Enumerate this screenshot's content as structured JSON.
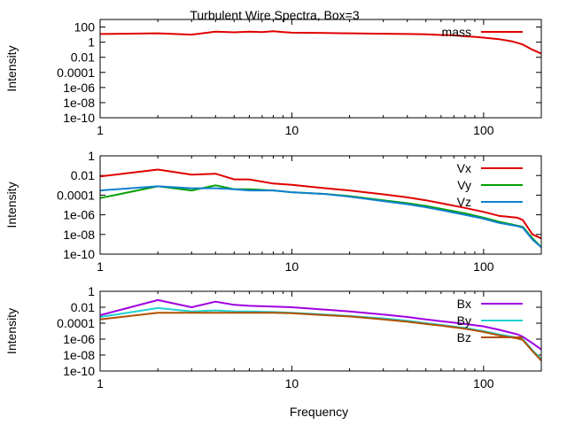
{
  "title": "Turbulent Wire Spectra, Box=3",
  "xlabel": "Frequency",
  "colors": {
    "mass": "#e00000",
    "Vx": "#e00000",
    "Vy": "#00a000",
    "Vz": "#1080d0",
    "Bx": "#a000e0",
    "By": "#20d0d0",
    "Bz": "#b05000"
  },
  "chart_data": [
    {
      "type": "line",
      "title": "Turbulent Wire Spectra, Box=3",
      "xlabel": "",
      "ylabel": "Intensity",
      "xscale": "log",
      "yscale": "log",
      "xlim": [
        1,
        200
      ],
      "ylim": [
        1e-10,
        1000
      ],
      "xticks": [
        "1",
        "10",
        "100"
      ],
      "yticks": [
        "100",
        "1",
        "0.01",
        "0.0001",
        "1e-06",
        "1e-08",
        "1e-10"
      ],
      "legend_position": "top-right",
      "series": [
        {
          "name": "mass",
          "x": [
            1,
            2,
            3,
            4,
            5,
            6,
            7,
            8,
            9,
            10,
            15,
            20,
            30,
            40,
            50,
            60,
            70,
            80,
            90,
            100,
            120,
            140,
            160,
            180,
            200
          ],
          "y": [
            12,
            15,
            10,
            25,
            20,
            25,
            22,
            28,
            22,
            18,
            16,
            15,
            13,
            12,
            11,
            9,
            8,
            6,
            5,
            4,
            2.5,
            1.3,
            0.5,
            0.1,
            0.03
          ]
        }
      ]
    },
    {
      "type": "line",
      "xlabel": "",
      "ylabel": "Intensity",
      "xscale": "log",
      "yscale": "log",
      "xlim": [
        1,
        200
      ],
      "ylim": [
        1e-10,
        1
      ],
      "xticks": [
        "1",
        "10",
        "100"
      ],
      "yticks": [
        "1",
        "0.01",
        "0.0001",
        "1e-06",
        "1e-08",
        "1e-10"
      ],
      "legend_position": "top-right",
      "series": [
        {
          "name": "Vx",
          "x": [
            1,
            2,
            3,
            4,
            5,
            6,
            8,
            10,
            15,
            20,
            30,
            40,
            50,
            60,
            80,
            100,
            120,
            150,
            160,
            180,
            200
          ],
          "y": [
            0.008,
            0.04,
            0.012,
            0.015,
            0.004,
            0.004,
            0.0015,
            0.0011,
            0.0005,
            0.0003,
            0.00012,
            6e-05,
            3e-05,
            1.5e-05,
            5e-06,
            2e-06,
            8e-07,
            5e-07,
            3e-07,
            1e-08,
            4e-09
          ]
        },
        {
          "name": "Vy",
          "x": [
            1,
            2,
            3,
            4,
            5,
            6,
            8,
            10,
            15,
            20,
            30,
            40,
            50,
            60,
            80,
            100,
            120,
            150,
            160,
            180,
            200
          ],
          "y": [
            5e-05,
            0.0008,
            0.0003,
            0.001,
            0.0004,
            0.0004,
            0.0003,
            0.0002,
            0.00013,
            8e-05,
            3e-05,
            1.5e-05,
            8e-06,
            4e-06,
            1.4e-06,
            5e-07,
            2e-07,
            8e-08,
            6e-08,
            4e-09,
            5e-10
          ]
        },
        {
          "name": "Vz",
          "x": [
            1,
            2,
            3,
            4,
            5,
            6,
            8,
            10,
            15,
            20,
            30,
            40,
            50,
            60,
            80,
            100,
            120,
            150,
            160,
            180,
            200
          ],
          "y": [
            0.0003,
            0.0008,
            0.0005,
            0.0005,
            0.0004,
            0.0003,
            0.0003,
            0.0002,
            0.00013,
            7e-05,
            2.5e-05,
            1.2e-05,
            6e-06,
            3e-06,
            1e-06,
            4e-07,
            1.5e-07,
            7e-08,
            5e-08,
            3e-09,
            5e-10
          ]
        }
      ]
    },
    {
      "type": "line",
      "xlabel": "Frequency",
      "ylabel": "Intensity",
      "xscale": "log",
      "yscale": "log",
      "xlim": [
        1,
        200
      ],
      "ylim": [
        1e-10,
        1
      ],
      "xticks": [
        "1",
        "10",
        "100"
      ],
      "yticks": [
        "1",
        "0.01",
        "0.0001",
        "1e-06",
        "1e-08",
        "1e-10"
      ],
      "legend_position": "top-right",
      "series": [
        {
          "name": "Bx",
          "x": [
            1,
            2,
            3,
            4,
            5,
            6,
            8,
            10,
            15,
            20,
            30,
            40,
            50,
            60,
            80,
            100,
            120,
            150,
            160,
            180,
            200
          ],
          "y": [
            0.001,
            0.08,
            0.01,
            0.05,
            0.02,
            0.015,
            0.012,
            0.01,
            0.005,
            0.003,
            0.0012,
            0.0006,
            0.0003,
            0.00018,
            8e-05,
            4e-05,
            1.5e-05,
            4e-06,
            2e-06,
            3e-07,
            5e-08
          ]
        },
        {
          "name": "By",
          "x": [
            1,
            2,
            3,
            4,
            5,
            6,
            8,
            10,
            15,
            20,
            30,
            40,
            50,
            60,
            80,
            100,
            120,
            150,
            160,
            180,
            200
          ],
          "y": [
            0.0006,
            0.008,
            0.003,
            0.004,
            0.003,
            0.003,
            0.0025,
            0.002,
            0.0012,
            0.0008,
            0.0004,
            0.0002,
            0.0001,
            6e-05,
            2.5e-05,
            1e-05,
            4e-06,
            1.5e-06,
            1e-06,
            4e-08,
            3e-09
          ]
        },
        {
          "name": "Bz",
          "x": [
            1,
            2,
            3,
            4,
            5,
            6,
            8,
            10,
            15,
            20,
            30,
            40,
            50,
            60,
            80,
            100,
            120,
            150,
            160,
            180,
            200
          ],
          "y": [
            0.0003,
            0.002,
            0.002,
            0.002,
            0.002,
            0.002,
            0.002,
            0.0018,
            0.001,
            0.0007,
            0.0003,
            0.00015,
            8e-05,
            5e-05,
            2e-05,
            8e-06,
            3e-06,
            1.2e-06,
            8e-07,
            3e-08,
            2e-09
          ]
        }
      ]
    }
  ]
}
